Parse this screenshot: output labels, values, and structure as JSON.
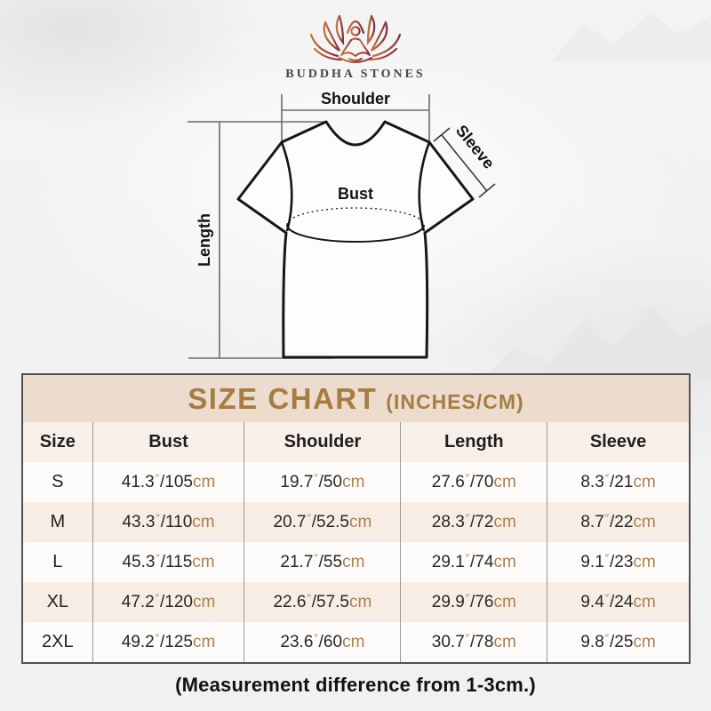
{
  "brand": {
    "name": "BUDDHA STONES",
    "logo_icon": "lotus-meditation-icon"
  },
  "diagram": {
    "shoulder_label": "Shoulder",
    "sleeve_label": "Sleeve",
    "bust_label": "Bust",
    "length_label": "Length"
  },
  "size_chart": {
    "title": "SIZE CHART",
    "subtitle": "(INCHES/CM)",
    "columns": [
      "Size",
      "Bust",
      "Shoulder",
      "Length",
      "Sleeve"
    ],
    "measure_keys": [
      "bust",
      "shoulder",
      "length",
      "sleeve"
    ],
    "rows": [
      {
        "size": "S",
        "bust": {
          "in": "41.3",
          "cm": "105"
        },
        "shoulder": {
          "in": "19.7",
          "cm": "50"
        },
        "length": {
          "in": "27.6",
          "cm": "70"
        },
        "sleeve": {
          "in": "8.3",
          "cm": "21"
        }
      },
      {
        "size": "M",
        "bust": {
          "in": "43.3",
          "cm": "110"
        },
        "shoulder": {
          "in": "20.7",
          "cm": "52.5"
        },
        "length": {
          "in": "28.3",
          "cm": "72"
        },
        "sleeve": {
          "in": "8.7",
          "cm": "22"
        }
      },
      {
        "size": "L",
        "bust": {
          "in": "45.3",
          "cm": "115"
        },
        "shoulder": {
          "in": "21.7",
          "cm": "55"
        },
        "length": {
          "in": "29.1",
          "cm": "74"
        },
        "sleeve": {
          "in": "9.1",
          "cm": "23"
        }
      },
      {
        "size": "XL",
        "bust": {
          "in": "47.2",
          "cm": "120"
        },
        "shoulder": {
          "in": "22.6",
          "cm": "57.5"
        },
        "length": {
          "in": "29.9",
          "cm": "76"
        },
        "sleeve": {
          "in": "9.4",
          "cm": "24"
        }
      },
      {
        "size": "2XL",
        "bust": {
          "in": "49.2",
          "cm": "125"
        },
        "shoulder": {
          "in": "23.6",
          "cm": "60"
        },
        "length": {
          "in": "30.7",
          "cm": "78"
        },
        "sleeve": {
          "in": "9.8",
          "cm": "25"
        }
      }
    ],
    "unit_marks": {
      "inch": "″",
      "cm": "cm",
      "separator": "/"
    },
    "footnote": "(Measurement difference from 1-3cm.)"
  },
  "colors": {
    "title_gold": "#A67C42",
    "unit_gold": "#A8824F",
    "band_beige": "#ECDCCD",
    "row_beige": "#F7EDE5",
    "table_border": "#55504C",
    "logo_gradient_start": "#C4713B",
    "logo_gradient_end": "#7E2F3C"
  },
  "chart_data": {
    "type": "table",
    "title": "SIZE CHART (INCHES/CM)",
    "columns": [
      "Size",
      "Bust",
      "Shoulder",
      "Length",
      "Sleeve"
    ],
    "rows": [
      [
        "S",
        "41.3\"/105cm",
        "19.7\"/50cm",
        "27.6\"/70cm",
        "8.3\"/21cm"
      ],
      [
        "M",
        "43.3\"/110cm",
        "20.7\"/52.5cm",
        "28.3\"/72cm",
        "8.7\"/22cm"
      ],
      [
        "L",
        "45.3\"/115cm",
        "21.7\"/55cm",
        "29.1\"/74cm",
        "9.1\"/23cm"
      ],
      [
        "XL",
        "47.2\"/120cm",
        "22.6\"/57.5cm",
        "29.9\"/76cm",
        "9.4\"/24cm"
      ],
      [
        "2XL",
        "49.2\"/125cm",
        "23.6\"/60cm",
        "30.7\"/78cm",
        "9.8\"/25cm"
      ]
    ],
    "footnote": "(Measurement difference from 1-3cm.)"
  }
}
